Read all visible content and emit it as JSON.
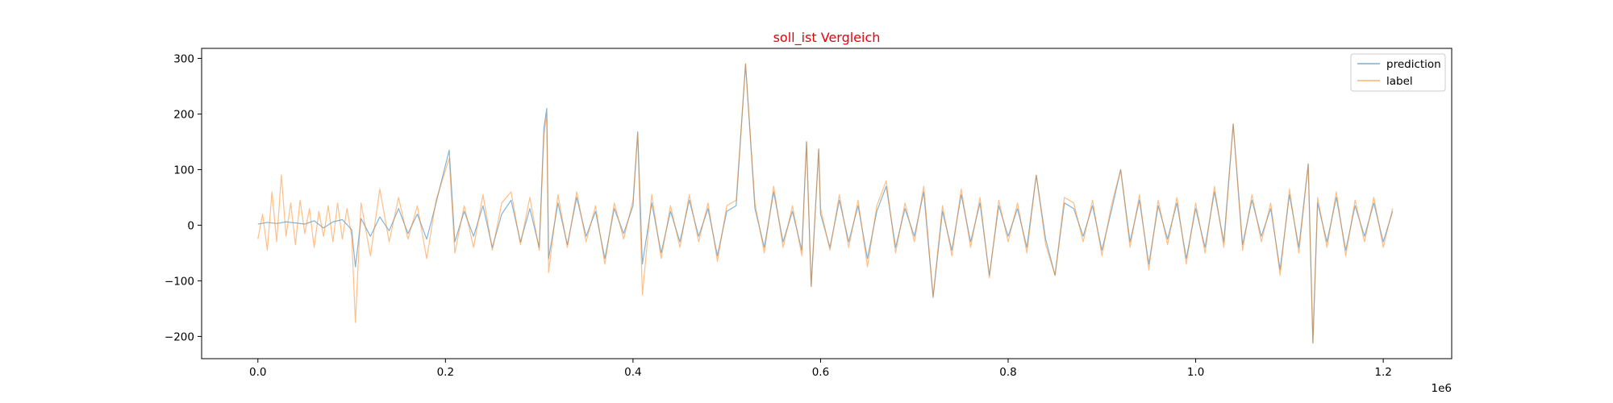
{
  "chart_data": {
    "type": "line",
    "title": "soll_ist Vergleich",
    "title_color": "#e8000b",
    "xlabel": "",
    "ylabel": "",
    "x_offset_label": "1e6",
    "xlim": [
      -0.06,
      1.273
    ],
    "ylim": [
      -240,
      318
    ],
    "x_ticks": [
      0.0,
      0.2,
      0.4,
      0.6,
      0.8,
      1.0,
      1.2
    ],
    "x_tick_labels": [
      "0.0",
      "0.2",
      "0.4",
      "0.6",
      "0.8",
      "1.0",
      "1.2"
    ],
    "y_ticks": [
      -200,
      -100,
      0,
      100,
      200,
      300
    ],
    "y_tick_labels": [
      "−200",
      "−100",
      "0",
      "100",
      "200",
      "300"
    ],
    "grid": false,
    "legend_position": "upper-right",
    "series": [
      {
        "name": "prediction",
        "color": "#1f77b4",
        "x": [
          0.0,
          0.01,
          0.02,
          0.03,
          0.04,
          0.05,
          0.06,
          0.07,
          0.08,
          0.09,
          0.1,
          0.104,
          0.11,
          0.12,
          0.13,
          0.14,
          0.15,
          0.16,
          0.17,
          0.18,
          0.19,
          0.204,
          0.21,
          0.22,
          0.23,
          0.24,
          0.25,
          0.26,
          0.27,
          0.28,
          0.29,
          0.3,
          0.305,
          0.308,
          0.31,
          0.32,
          0.33,
          0.34,
          0.35,
          0.36,
          0.37,
          0.38,
          0.39,
          0.4,
          0.405,
          0.41,
          0.42,
          0.43,
          0.44,
          0.45,
          0.46,
          0.47,
          0.48,
          0.49,
          0.5,
          0.51,
          0.52,
          0.53,
          0.54,
          0.55,
          0.56,
          0.57,
          0.58,
          0.585,
          0.59,
          0.598,
          0.6,
          0.61,
          0.62,
          0.63,
          0.64,
          0.65,
          0.66,
          0.67,
          0.68,
          0.69,
          0.7,
          0.71,
          0.72,
          0.73,
          0.74,
          0.75,
          0.76,
          0.77,
          0.78,
          0.79,
          0.8,
          0.81,
          0.82,
          0.83,
          0.84,
          0.85,
          0.86,
          0.87,
          0.88,
          0.89,
          0.9,
          0.91,
          0.92,
          0.93,
          0.94,
          0.95,
          0.96,
          0.97,
          0.98,
          0.99,
          1.0,
          1.01,
          1.02,
          1.03,
          1.04,
          1.05,
          1.06,
          1.07,
          1.08,
          1.09,
          1.1,
          1.11,
          1.12,
          1.125,
          1.13,
          1.14,
          1.15,
          1.16,
          1.17,
          1.18,
          1.19,
          1.2,
          1.21
        ],
        "y": [
          2,
          5,
          3,
          6,
          4,
          2,
          8,
          -5,
          6,
          10,
          -8,
          -75,
          12,
          -20,
          15,
          -10,
          30,
          -15,
          20,
          -25,
          40,
          135,
          -30,
          25,
          -20,
          35,
          -40,
          20,
          45,
          -30,
          30,
          -40,
          175,
          210,
          -60,
          40,
          -35,
          50,
          -20,
          25,
          -60,
          30,
          -15,
          35,
          168,
          -70,
          40,
          -50,
          25,
          -30,
          45,
          -20,
          30,
          -55,
          25,
          35,
          290,
          30,
          -40,
          60,
          -30,
          25,
          -45,
          150,
          -110,
          137,
          20,
          -40,
          45,
          -30,
          35,
          -60,
          25,
          70,
          -40,
          30,
          -20,
          60,
          -130,
          25,
          -45,
          55,
          -30,
          40,
          -90,
          35,
          -20,
          30,
          -40,
          90,
          -25,
          -90,
          40,
          30,
          -20,
          35,
          -45,
          25,
          100,
          -30,
          45,
          -70,
          35,
          -25,
          40,
          -60,
          30,
          -40,
          60,
          -30,
          182,
          -35,
          45,
          -20,
          30,
          -80,
          55,
          -40,
          110,
          -212,
          40,
          -30,
          50,
          -45,
          35,
          -20,
          40,
          -30,
          25
        ]
      },
      {
        "name": "label",
        "color": "#ff7f0e",
        "x": [
          0.0,
          0.005,
          0.01,
          0.015,
          0.02,
          0.025,
          0.03,
          0.035,
          0.04,
          0.045,
          0.05,
          0.055,
          0.06,
          0.065,
          0.07,
          0.075,
          0.08,
          0.085,
          0.09,
          0.095,
          0.1,
          0.104,
          0.11,
          0.12,
          0.13,
          0.14,
          0.15,
          0.16,
          0.17,
          0.18,
          0.19,
          0.204,
          0.21,
          0.22,
          0.23,
          0.24,
          0.25,
          0.26,
          0.27,
          0.28,
          0.29,
          0.3,
          0.305,
          0.308,
          0.31,
          0.32,
          0.33,
          0.34,
          0.35,
          0.36,
          0.37,
          0.38,
          0.39,
          0.4,
          0.405,
          0.41,
          0.42,
          0.43,
          0.44,
          0.45,
          0.46,
          0.47,
          0.48,
          0.49,
          0.5,
          0.51,
          0.52,
          0.53,
          0.54,
          0.55,
          0.56,
          0.57,
          0.58,
          0.585,
          0.59,
          0.598,
          0.6,
          0.61,
          0.62,
          0.63,
          0.64,
          0.65,
          0.66,
          0.67,
          0.68,
          0.69,
          0.7,
          0.71,
          0.72,
          0.73,
          0.74,
          0.75,
          0.76,
          0.77,
          0.78,
          0.79,
          0.8,
          0.81,
          0.82,
          0.83,
          0.84,
          0.85,
          0.86,
          0.87,
          0.88,
          0.89,
          0.9,
          0.91,
          0.92,
          0.93,
          0.94,
          0.95,
          0.96,
          0.97,
          0.98,
          0.99,
          1.0,
          1.01,
          1.02,
          1.03,
          1.04,
          1.05,
          1.06,
          1.07,
          1.08,
          1.09,
          1.1,
          1.11,
          1.12,
          1.125,
          1.13,
          1.14,
          1.15,
          1.16,
          1.17,
          1.18,
          1.19,
          1.2,
          1.21
        ],
        "y": [
          -25,
          20,
          -45,
          60,
          -30,
          90,
          -20,
          40,
          -35,
          45,
          -15,
          30,
          -40,
          25,
          -20,
          35,
          -30,
          40,
          -25,
          30,
          -20,
          -175,
          40,
          -55,
          65,
          -30,
          50,
          -25,
          35,
          -60,
          45,
          120,
          -50,
          35,
          -40,
          55,
          -45,
          40,
          60,
          -35,
          50,
          -45,
          160,
          200,
          -85,
          55,
          -40,
          60,
          -30,
          35,
          -70,
          40,
          -25,
          45,
          165,
          -125,
          55,
          -60,
          35,
          -40,
          55,
          -30,
          40,
          -65,
          35,
          45,
          290,
          40,
          -50,
          70,
          -40,
          35,
          -55,
          150,
          -110,
          137,
          30,
          -45,
          55,
          -40,
          45,
          -75,
          35,
          80,
          -50,
          40,
          -30,
          70,
          -128,
          35,
          -55,
          65,
          -40,
          50,
          -95,
          45,
          -30,
          40,
          -50,
          90,
          -35,
          -90,
          50,
          40,
          -30,
          45,
          -55,
          35,
          100,
          -40,
          55,
          -80,
          45,
          -35,
          50,
          -70,
          40,
          -50,
          70,
          -40,
          182,
          -45,
          55,
          -30,
          40,
          -90,
          65,
          -50,
          110,
          -212,
          50,
          -40,
          60,
          -55,
          45,
          -30,
          50,
          -40,
          30
        ]
      }
    ]
  }
}
